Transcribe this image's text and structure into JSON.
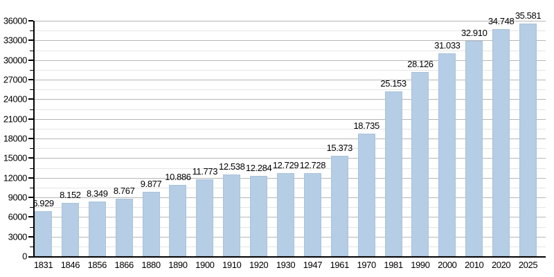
{
  "page": {
    "background": "#ffffff"
  },
  "chart_data": {
    "type": "bar",
    "title": "",
    "xlabel": "",
    "ylabel": "",
    "categories": [
      "1831",
      "1846",
      "1856",
      "1866",
      "1880",
      "1890",
      "1900",
      "1910",
      "1920",
      "1930",
      "1947",
      "1961",
      "1970",
      "1981",
      "1990",
      "2000",
      "2010",
      "2020",
      "2025"
    ],
    "values": [
      6929,
      8152,
      8349,
      8767,
      9877,
      10886,
      11773,
      12538,
      12284,
      12729,
      12728,
      15373,
      18735,
      25153,
      28126,
      31033,
      32910,
      34748,
      35581
    ],
    "value_labels": [
      "6.929",
      "8.152",
      "8.349",
      "8.767",
      "9.877",
      "10.886",
      "11.773",
      "12.538",
      "12.284",
      "12.729",
      "12.728",
      "15.373",
      "18.735",
      "25.153",
      "28.126",
      "31.033",
      "32.910",
      "34.748",
      "35.581"
    ],
    "ylim": [
      0,
      36000
    ],
    "y_major_step": 3000,
    "y_minor_step": 1500,
    "y_tick_labels": [
      "0",
      "3000",
      "6000",
      "9000",
      "12000",
      "15000",
      "18000",
      "21000",
      "24000",
      "27000",
      "30000",
      "33000",
      "36000"
    ],
    "grid": "on",
    "legend": "none",
    "colors": {
      "bar_fill": "#b5cde5",
      "bar_border": "#a9c2da",
      "grid_major": "#b6b6b6",
      "grid_minor": "#e4e4e4",
      "axis": "#000000",
      "text": "#000000"
    }
  }
}
